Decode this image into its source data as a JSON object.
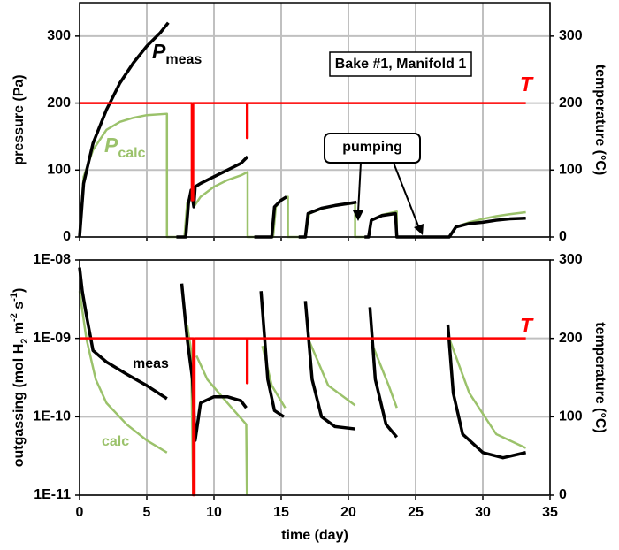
{
  "chart_data": [
    {
      "type": "line",
      "ylabel": "pressure (Pa)",
      "y2label": "temperature (°C)",
      "xlim": [
        0,
        35
      ],
      "xticks": [
        0,
        5,
        10,
        15,
        20,
        25,
        30,
        35
      ],
      "show_x_tick_labels": false,
      "ylim": [
        0,
        350
      ],
      "yticks": [
        0,
        100,
        200,
        300
      ],
      "y2lim": [
        0,
        350
      ],
      "y2ticks": [
        0,
        100,
        200,
        300
      ],
      "grid": true,
      "annotations": [
        "Bake #1, Manifold 1",
        "pumping"
      ],
      "series": [
        {
          "name": "P",
          "name_sub": "calc",
          "color": "#9bc26b",
          "x": [
            0,
            0.3,
            1,
            2,
            3,
            4,
            5,
            6.5,
            6.5,
            7.8,
            8.0,
            8.3,
            8.45,
            8.5,
            9,
            10,
            11,
            12,
            12.5,
            12.5,
            14.4,
            14.6,
            15,
            15.5,
            15.5,
            16.8,
            17.1,
            18,
            19,
            20.3,
            20.5,
            20.5,
            21.5,
            21.7,
            22.5,
            23.6,
            23.6,
            27.5,
            28,
            29,
            30,
            31,
            32,
            33.2
          ],
          "values": [
            0,
            90,
            130,
            160,
            172,
            178,
            182,
            184,
            0,
            0,
            50,
            65,
            60,
            45,
            60,
            75,
            85,
            92,
            97,
            0,
            0,
            45,
            55,
            60,
            0,
            0,
            35,
            42,
            47,
            50,
            52,
            0,
            0,
            25,
            33,
            38,
            0,
            0,
            15,
            22,
            27,
            31,
            34,
            37
          ]
        },
        {
          "name": "P",
          "name_sub": "meas",
          "color": "#000000",
          "x": [
            0,
            0.3,
            1,
            2,
            3,
            4,
            5,
            6,
            6.6,
            6.9,
            7.2,
            7.9,
            8.1,
            8.3,
            8.5,
            8.6,
            9,
            10,
            11,
            12,
            12.5,
            12.55,
            13,
            14.3,
            14.5,
            15,
            15.4,
            16,
            16.3,
            16.8,
            17,
            18,
            19,
            20,
            20.6,
            21,
            21.2,
            21.5,
            21.7,
            22.5,
            23.5,
            23.6,
            25,
            27,
            27.5,
            28,
            29,
            30,
            31,
            32,
            33.2
          ],
          "values": [
            0,
            80,
            140,
            190,
            230,
            260,
            285,
            305,
            320,
            null,
            0,
            0,
            50,
            70,
            45,
            75,
            80,
            90,
            100,
            110,
            120,
            null,
            0,
            0,
            45,
            55,
            60,
            null,
            0,
            0,
            35,
            43,
            47,
            50,
            52,
            null,
            0,
            0,
            25,
            32,
            35,
            0,
            0,
            0,
            0,
            15,
            20,
            22,
            25,
            27,
            28
          ]
        },
        {
          "name": "T",
          "color": "#ff0000",
          "axis": "y2",
          "x": [
            0,
            8.35,
            8.35,
            8.45,
            8.45,
            12.45,
            12.45,
            12.5,
            12.5,
            33.2
          ],
          "values": [
            200,
            200,
            55,
            55,
            200,
            200,
            148,
            148,
            200,
            200
          ]
        }
      ]
    },
    {
      "type": "line",
      "ylabel": [
        {
          "text": "outgassing (mol H"
        },
        {
          "text": "2",
          "shift": "sub"
        },
        {
          "text": " m"
        },
        {
          "text": "-2",
          "shift": "sup"
        },
        {
          "text": " s"
        },
        {
          "text": "-1",
          "shift": "sup"
        },
        {
          "text": ")"
        }
      ],
      "y2label": "temperature (°C)",
      "xlabel": "time (day)",
      "xlim": [
        0,
        35
      ],
      "xticks": [
        0,
        5,
        10,
        15,
        20,
        25,
        30,
        35
      ],
      "ylim": [
        1e-11,
        1e-08
      ],
      "log_y": true,
      "yticks": [
        {
          "value": 1e-11,
          "label": "1E-11"
        },
        {
          "value": 1e-10,
          "label": "1E-10"
        },
        {
          "value": 1e-09,
          "label": "1E-09"
        },
        {
          "value": 1e-08,
          "label": "1E-08"
        }
      ],
      "y2lim": [
        0,
        300
      ],
      "y2ticks": [
        0,
        100,
        200,
        300
      ],
      "grid": true,
      "series": [
        {
          "name": "calc",
          "color": "#9bc26b",
          "x": [
            0,
            0.5,
            1.2,
            2,
            3.5,
            5,
            6.5,
            7,
            8,
            8.3,
            8.45,
            8.5,
            8.7,
            9.5,
            11,
            12.4,
            12.45,
            13,
            13.6,
            14.3,
            15.3,
            16,
            17,
            18.5,
            20.5,
            21,
            21.7,
            23,
            23.6,
            25,
            27.5,
            29,
            31,
            33.2
          ],
          "values": [
            4e-09,
            1e-09,
            3e-10,
            1.5e-10,
            8e-11,
            5e-11,
            3.5e-11,
            null,
            1.5e-09,
            7e-10,
            1e-11,
            null,
            6e-10,
            3e-10,
            1.5e-10,
            8e-11,
            1e-11,
            null,
            8e-10,
            2.5e-10,
            1.3e-10,
            null,
            1e-09,
            2.5e-10,
            1.4e-10,
            null,
            9e-10,
            2.5e-10,
            1.3e-10,
            null,
            1e-09,
            2e-10,
            6e-11,
            4e-11
          ]
        },
        {
          "name": "meas",
          "color": "#000000",
          "x": [
            0,
            0.2,
            0.5,
            1,
            2,
            3.5,
            5,
            6.5,
            7,
            7.6,
            8,
            8.4,
            8.6,
            9,
            10,
            11,
            12,
            12.4,
            13,
            13.5,
            14,
            14.5,
            15.2,
            16,
            16.8,
            17.3,
            18,
            19,
            20.5,
            21,
            21.6,
            22,
            22.8,
            23.6,
            25,
            27.4,
            27.8,
            28.5,
            30,
            31.5,
            33.2
          ],
          "values": [
            8e-09,
            4e-09,
            2e-09,
            7e-10,
            5e-10,
            3.5e-10,
            2.5e-10,
            1.7e-10,
            null,
            5e-09,
            1e-09,
            3e-10,
            5e-11,
            1.5e-10,
            1.8e-10,
            1.8e-10,
            1.6e-10,
            1.3e-10,
            null,
            4e-09,
            3e-10,
            1.2e-10,
            1e-10,
            null,
            3e-09,
            3e-10,
            1e-10,
            7.5e-11,
            7e-11,
            null,
            2.5e-09,
            3e-10,
            8e-11,
            5.5e-11,
            null,
            1.5e-09,
            2e-10,
            6e-11,
            3.5e-11,
            3e-11,
            3.5e-11
          ]
        },
        {
          "name": "T",
          "color": "#ff0000",
          "axis": "y2",
          "x": [
            0,
            8.45,
            8.45,
            8.55,
            8.55,
            12.45,
            12.45,
            12.5,
            12.5,
            33.2
          ],
          "values": [
            200,
            200,
            0,
            0,
            200,
            200,
            143,
            143,
            200,
            200
          ]
        }
      ]
    }
  ]
}
